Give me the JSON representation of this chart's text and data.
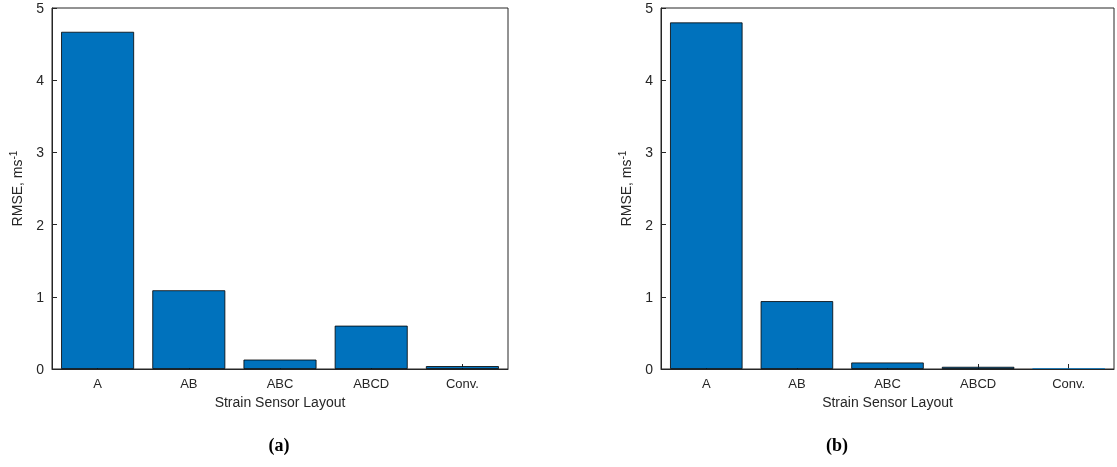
{
  "chart_data": [
    {
      "type": "bar",
      "title": "(a)",
      "xlabel": "Strain Sensor Layout",
      "ylabel": "RMSE, ms$^{-1}$",
      "categories": [
        "A",
        "AB",
        "ABC",
        "ABCD",
        "Conv."
      ],
      "values": [
        4.67,
        1.09,
        0.13,
        0.6,
        0.04
      ],
      "color": "#0072bd",
      "ylim": [
        0,
        5
      ],
      "yticks": [
        0,
        1,
        2,
        3,
        4,
        5
      ],
      "grid": false
    },
    {
      "type": "bar",
      "title": "(b)",
      "xlabel": "Strain Sensor Layout",
      "ylabel": "RMSE, ms$^{-1}$",
      "categories": [
        "A",
        "AB",
        "ABC",
        "ABCD",
        "Conv."
      ],
      "values": [
        4.8,
        0.94,
        0.09,
        0.03,
        0.01
      ],
      "color": "#0072bd",
      "ylim": [
        0,
        5
      ],
      "yticks": [
        0,
        1,
        2,
        3,
        4,
        5
      ],
      "grid": false
    }
  ]
}
